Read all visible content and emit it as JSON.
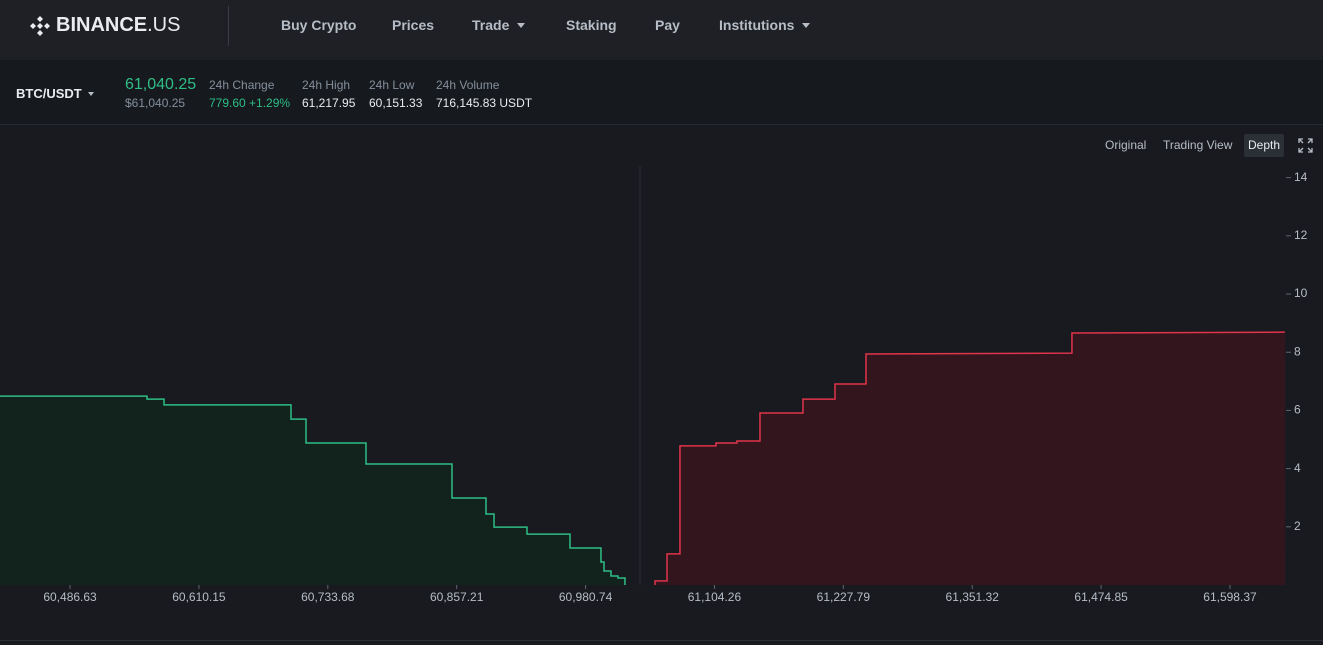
{
  "nav": {
    "logo_main": "BINANCE",
    "logo_suffix": ".US",
    "items": [
      "Buy Crypto",
      "Prices",
      "Trade",
      "Staking",
      "Pay",
      "Institutions"
    ]
  },
  "ticker": {
    "pair": "BTC/USDT",
    "last_price": "61,040.25",
    "last_price_usd": "$61,040.25",
    "stats": [
      {
        "label": "24h Change",
        "value": "779.60 +1.29%"
      },
      {
        "label": "24h High",
        "value": "61,217.95"
      },
      {
        "label": "24h Low",
        "value": "60,151.33"
      },
      {
        "label": "24h Volume",
        "value": "716,145.83 USDT"
      }
    ]
  },
  "chart_controls": [
    "Original",
    "Trading View",
    "Depth"
  ],
  "chart_data": {
    "type": "depth",
    "xlim": [
      60419.5,
      61651.1
    ],
    "ylim": [
      0,
      14.4
    ],
    "xticks": [
      {
        "value": 60486.63,
        "label": "60,486.63"
      },
      {
        "value": 60610.15,
        "label": "60,610.15"
      },
      {
        "value": 60733.68,
        "label": "60,733.68"
      },
      {
        "value": 60857.21,
        "label": "60,857.21"
      },
      {
        "value": 60980.74,
        "label": "60,980.74"
      },
      {
        "value": 61104.26,
        "label": "61,104.26"
      },
      {
        "value": 61227.79,
        "label": "61,227.79"
      },
      {
        "value": 61351.32,
        "label": "61,351.32"
      },
      {
        "value": 61474.85,
        "label": "61,474.85"
      },
      {
        "value": 61598.37,
        "label": "61,598.37"
      }
    ],
    "yticks": [
      2,
      4,
      6,
      8,
      10,
      12,
      14
    ],
    "series": [
      {
        "color": "#2ebd85",
        "fill": "#12231e",
        "x": [
          60419.5,
          60560.4,
          60560.4,
          60576.7,
          60576.7,
          60698.4,
          60698.4,
          60712.8,
          60712.8,
          60770.3,
          60770.3,
          60852.7,
          60852.7,
          60885.3,
          60885.3,
          60893.0,
          60893.0,
          60924.6,
          60924.6,
          60965.8,
          60965.8,
          60995.5,
          60995.5,
          60998.4,
          60998.4,
          61005.1,
          61005.1,
          61011.8,
          61011.8,
          61018.5,
          61018.5
        ],
        "values": [
          6.49,
          6.49,
          6.39,
          6.39,
          6.19,
          6.19,
          5.7,
          5.7,
          4.88,
          4.88,
          4.16,
          4.16,
          2.99,
          2.99,
          2.44,
          2.44,
          1.99,
          1.99,
          1.75,
          1.75,
          1.27,
          1.27,
          0.79,
          0.79,
          0.48,
          0.48,
          0.31,
          0.31,
          0.24,
          0.24,
          0
        ]
      },
      {
        "color": "#e0344a",
        "fill": "#33161d",
        "x": [
          61047.3,
          61047.3,
          61058.8,
          61058.8,
          61071.2,
          61071.2,
          61105.7,
          61105.7,
          61125.8,
          61125.8,
          61147.9,
          61147.9,
          61189.1,
          61189.1,
          61219.8,
          61219.8,
          61249.5,
          61249.5,
          61446.9,
          61446.9,
          61651.0
        ],
        "values": [
          0,
          0.14,
          0.14,
          1.07,
          1.07,
          4.78,
          4.78,
          4.88,
          4.88,
          4.95,
          4.95,
          5.91,
          5.91,
          6.39,
          6.39,
          6.91,
          6.91,
          7.94,
          7.97,
          8.66,
          8.69
        ]
      }
    ]
  }
}
